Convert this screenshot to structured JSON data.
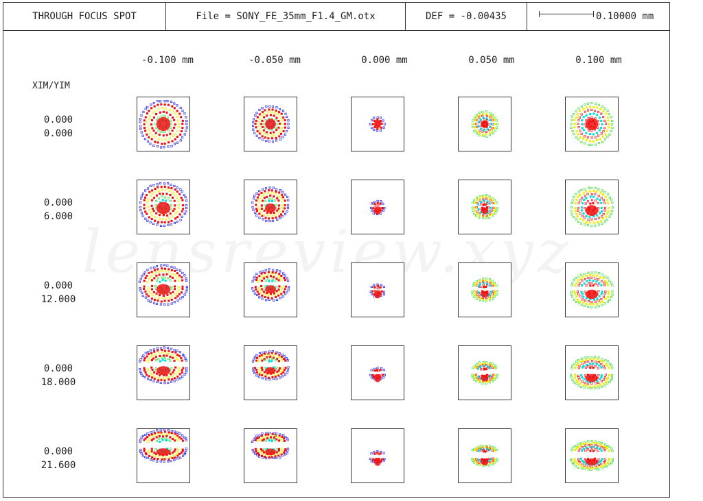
{
  "header": {
    "title": "THROUGH FOCUS SPOT",
    "file": "File = SONY_FE_35mm_F1.4_GM.otx",
    "def": "DEF = -0.00435",
    "scale": "0.10000 mm"
  },
  "axis_label": "XIM/YIM",
  "columns": [
    "-0.100 mm",
    "-0.050 mm",
    "0.000 mm",
    "0.050 mm",
    "0.100 mm"
  ],
  "rows": [
    {
      "label": "0.000\n0.000"
    },
    {
      "label": "0.000\n6.000"
    },
    {
      "label": "0.000\n12.000"
    },
    {
      "label": "0.000\n18.000"
    },
    {
      "label": "0.000\n21.600"
    }
  ],
  "watermark": "lensreview.xyz",
  "colors": {
    "blue": "#2222ee",
    "red": "#ee1111",
    "yellow": "#eeee00",
    "cyan": "#00dddd",
    "green": "#44dd44"
  }
}
